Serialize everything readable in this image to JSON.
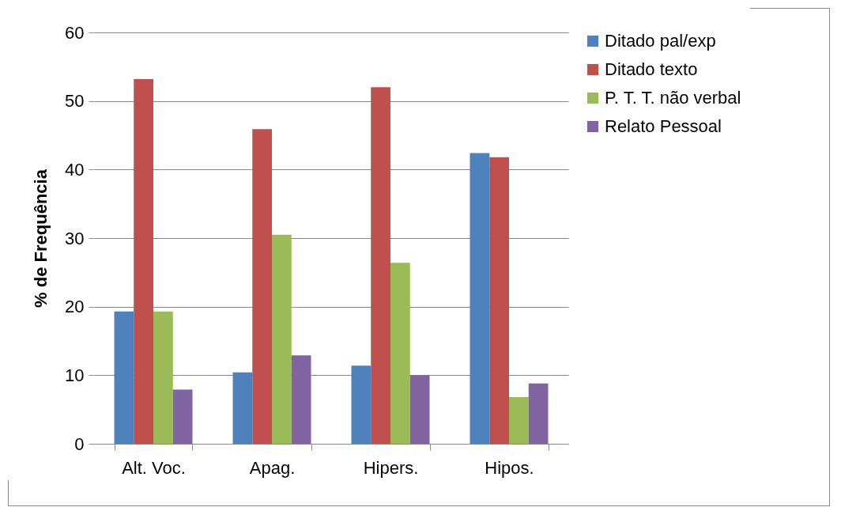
{
  "chart_data": {
    "type": "bar",
    "ylabel": "% de Frequência",
    "categories": [
      "Alt. Voc.",
      "Apag.",
      "Hipers.",
      "Hipos."
    ],
    "series": [
      {
        "name": "Ditado pal/exp",
        "color": "#4f81bd",
        "values": [
          19.3,
          10.4,
          11.4,
          42.4
        ]
      },
      {
        "name": "Ditado texto",
        "color": "#c0504d",
        "values": [
          53.2,
          45.9,
          52.0,
          41.8
        ]
      },
      {
        "name": "P. T. T. não verbal",
        "color": "#9bbb59",
        "values": [
          19.3,
          30.5,
          26.4,
          6.8
        ]
      },
      {
        "name": "Relato Pessoal",
        "color": "#8064a2",
        "values": [
          7.9,
          12.9,
          10.0,
          8.8
        ]
      }
    ],
    "ylim": [
      0,
      60
    ],
    "yticks": [
      0,
      10,
      20,
      30,
      40,
      50,
      60
    ],
    "grid": "y",
    "legend": "right"
  }
}
